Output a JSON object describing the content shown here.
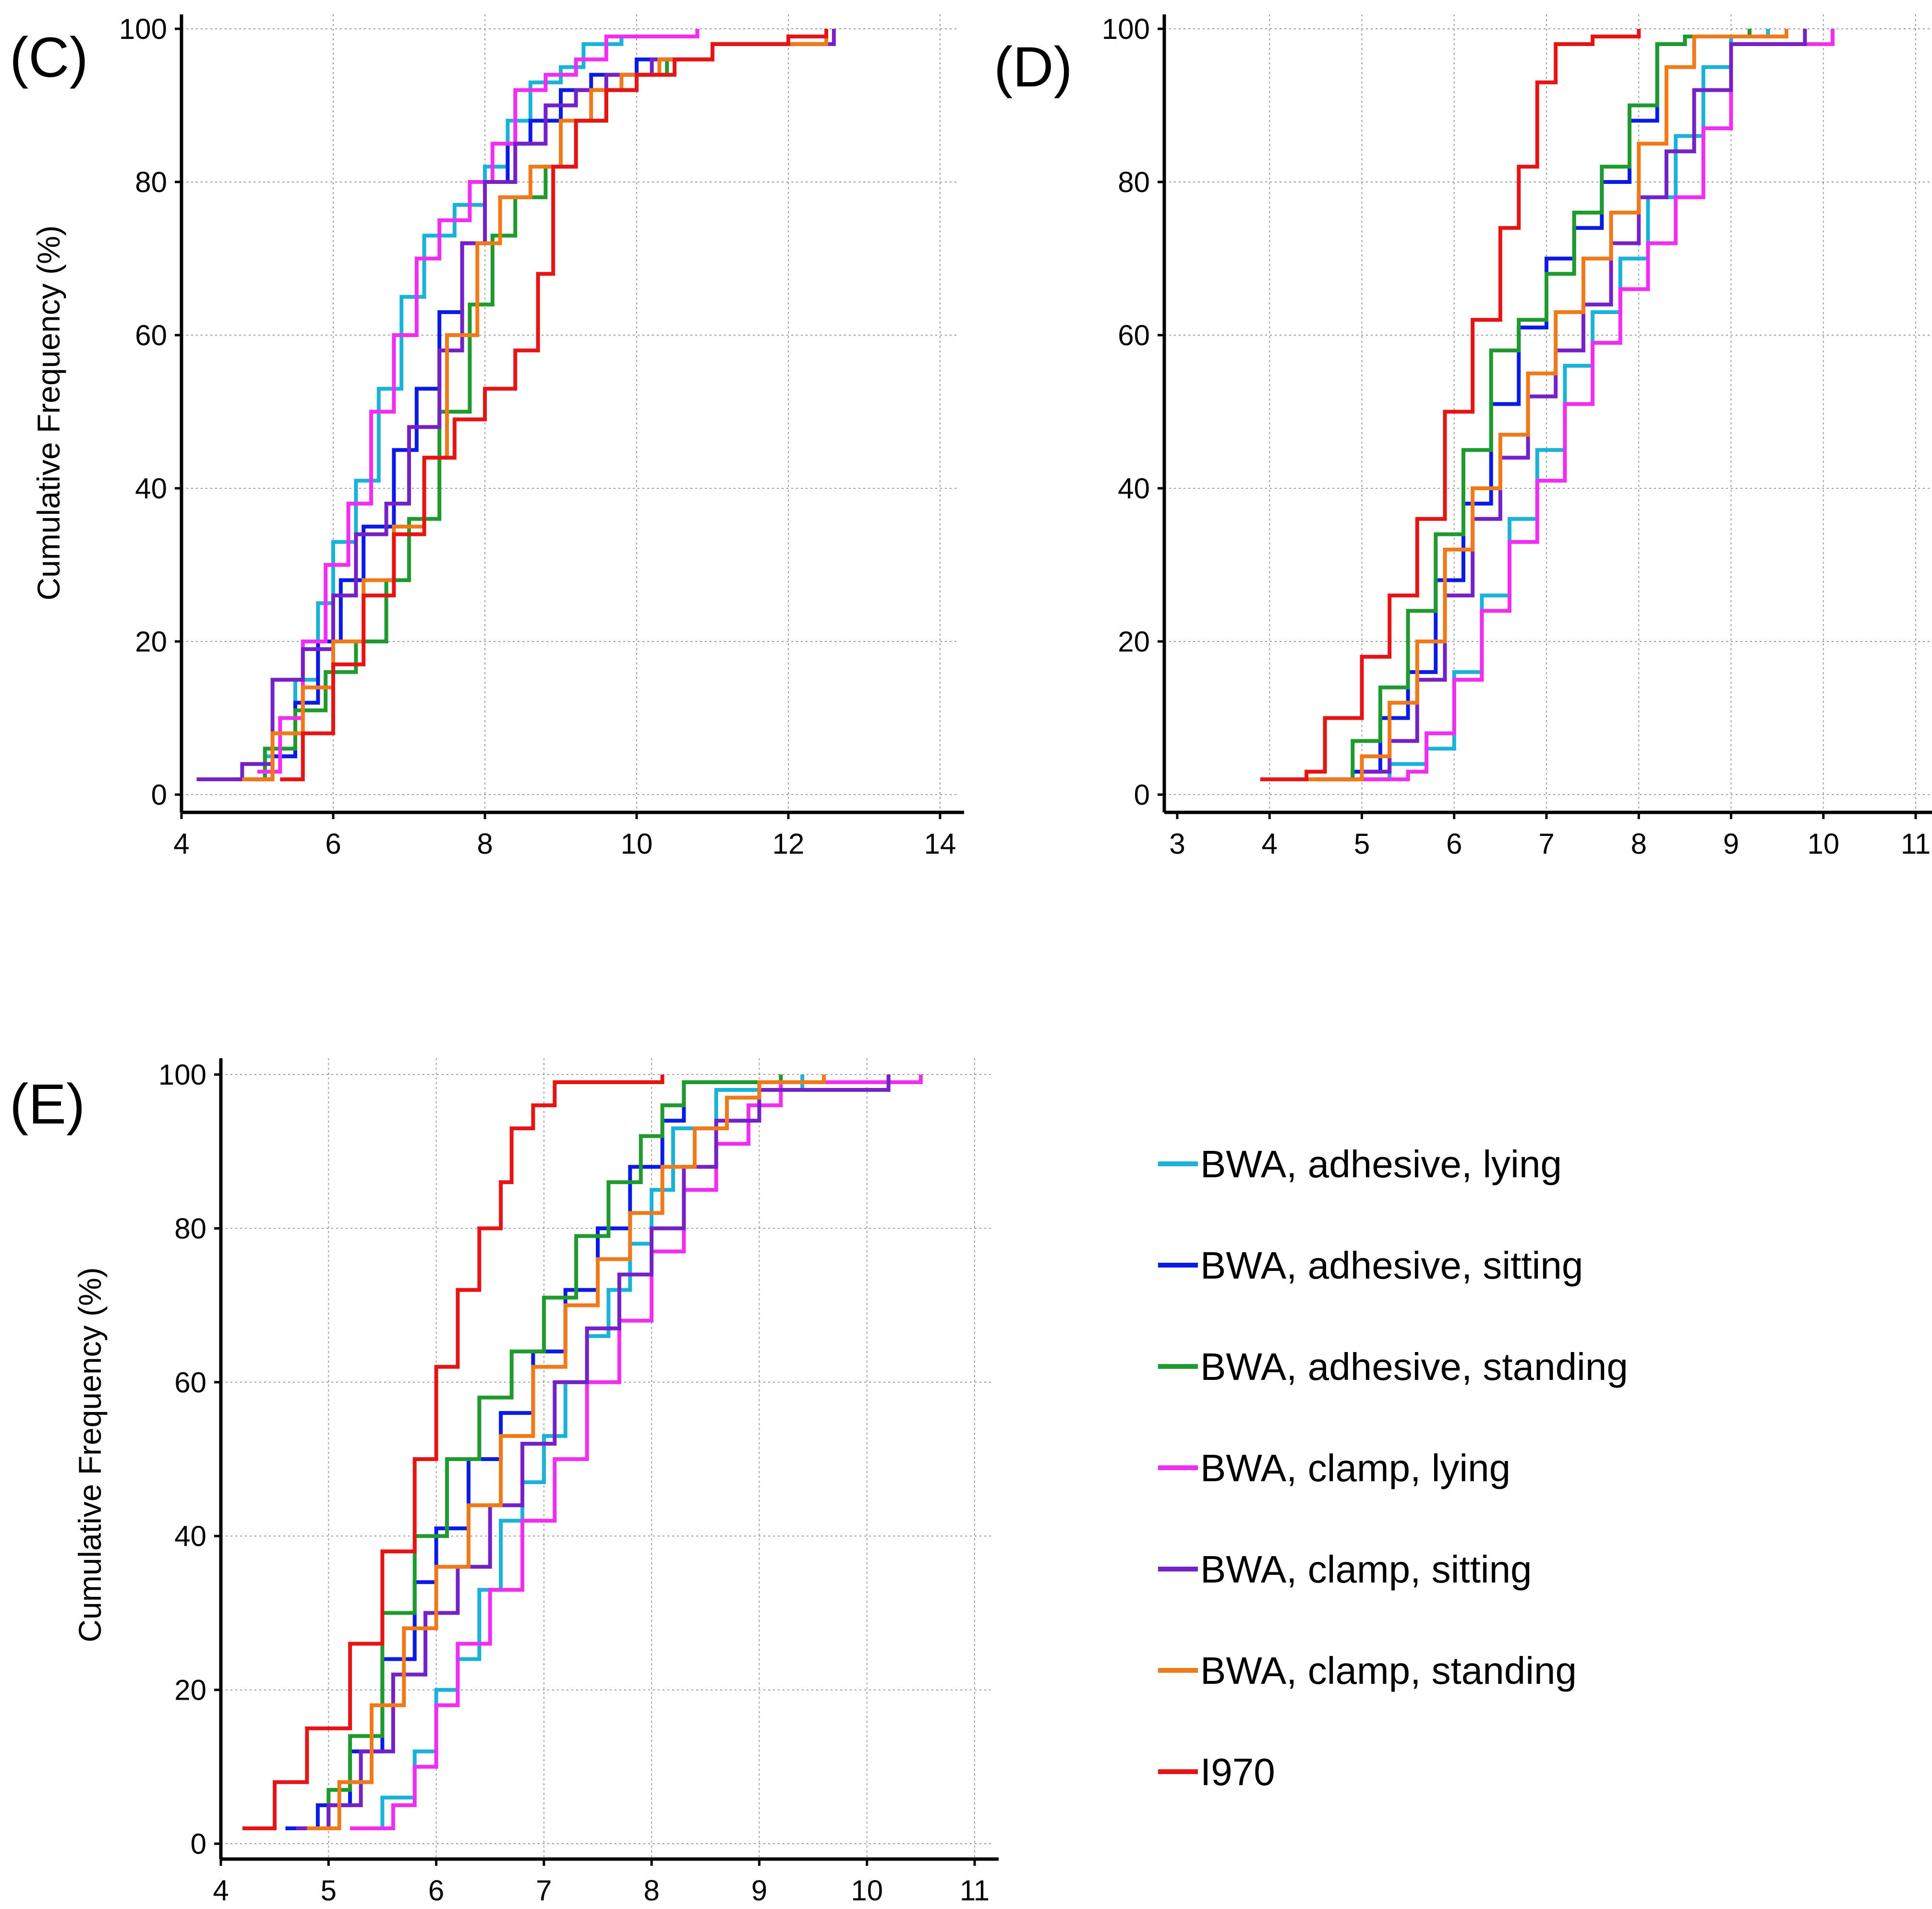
{
  "chart_data": [
    {
      "type": "line",
      "panel": "(C)",
      "ylabel": "Cumulative Frequency (%)",
      "xlabel": "",
      "xlim": [
        4,
        14
      ],
      "ylim": [
        0,
        100
      ],
      "xticks": [
        4,
        6,
        8,
        10,
        12,
        14
      ],
      "yticks": [
        0,
        20,
        40,
        60,
        80,
        100
      ],
      "series": [
        {
          "name": "BWA, adhesive, lying",
          "x": [
            4.8,
            5.1,
            5.5,
            5.8,
            6.0,
            6.3,
            6.6,
            6.9,
            7.2,
            7.6,
            8.0,
            8.3,
            8.6,
            9.0,
            9.3,
            9.8,
            10.8
          ],
          "y": [
            2,
            5,
            15,
            25,
            33,
            41,
            53,
            65,
            73,
            77,
            82,
            88,
            93,
            95,
            98,
            99,
            100
          ]
        },
        {
          "name": "BWA, adhesive, sitting",
          "x": [
            4.9,
            5.2,
            5.5,
            5.8,
            6.1,
            6.4,
            6.8,
            7.1,
            7.4,
            7.7,
            8.0,
            8.3,
            8.6,
            9.0,
            9.4,
            10.0,
            11.0,
            12.5
          ],
          "y": [
            2,
            5,
            12,
            20,
            28,
            35,
            45,
            53,
            63,
            72,
            80,
            85,
            88,
            92,
            94,
            96,
            98,
            100
          ]
        },
        {
          "name": "BWA, adhesive, standing",
          "x": [
            4.7,
            5.1,
            5.5,
            5.9,
            6.3,
            6.7,
            7.0,
            7.4,
            7.8,
            8.1,
            8.4,
            8.8,
            9.2,
            9.6,
            10.0,
            10.4,
            11.0,
            12.5
          ],
          "y": [
            2,
            6,
            11,
            16,
            20,
            28,
            36,
            50,
            64,
            73,
            78,
            82,
            88,
            92,
            94,
            96,
            98,
            100
          ]
        },
        {
          "name": "BWA, clamp, lying",
          "x": [
            5.0,
            5.3,
            5.6,
            5.9,
            6.2,
            6.5,
            6.8,
            7.1,
            7.4,
            7.8,
            8.1,
            8.4,
            8.8,
            9.2,
            9.6,
            10.8
          ],
          "y": [
            3,
            10,
            20,
            30,
            38,
            50,
            60,
            70,
            75,
            80,
            85,
            92,
            94,
            96,
            99,
            100
          ]
        },
        {
          "name": "BWA, clamp, sitting",
          "x": [
            4.2,
            4.8,
            5.2,
            5.6,
            6.0,
            6.3,
            6.7,
            7.0,
            7.4,
            7.7,
            8.0,
            8.4,
            8.8,
            9.2,
            9.6,
            10.2,
            11.0,
            12.6
          ],
          "y": [
            2,
            4,
            15,
            19,
            26,
            34,
            38,
            48,
            58,
            72,
            80,
            85,
            90,
            92,
            94,
            96,
            98,
            100
          ]
        },
        {
          "name": "BWA, clamp, standing",
          "x": [
            4.8,
            5.2,
            5.6,
            6.0,
            6.4,
            6.8,
            7.2,
            7.5,
            7.9,
            8.2,
            8.6,
            9.0,
            9.4,
            9.8,
            10.3,
            11.0,
            12.5
          ],
          "y": [
            2,
            8,
            14,
            20,
            28,
            35,
            44,
            60,
            72,
            78,
            82,
            88,
            92,
            94,
            96,
            98,
            100
          ]
        },
        {
          "name": "I970",
          "x": [
            5.3,
            5.6,
            6.0,
            6.4,
            6.8,
            7.2,
            7.6,
            8.0,
            8.4,
            8.7,
            8.9,
            9.2,
            9.6,
            10.0,
            10.5,
            11.0,
            12.0,
            12.5
          ],
          "y": [
            2,
            8,
            17,
            26,
            34,
            44,
            49,
            53,
            58,
            68,
            82,
            88,
            92,
            94,
            96,
            98,
            99,
            100
          ]
        }
      ]
    },
    {
      "type": "line",
      "panel": "(D)",
      "ylabel": "",
      "xlabel": "",
      "xlim": [
        3,
        11
      ],
      "ylim": [
        0,
        100
      ],
      "xticks": [
        3,
        4,
        5,
        6,
        7,
        8,
        9,
        10,
        11
      ],
      "yticks": [
        0,
        20,
        40,
        60,
        80,
        100
      ],
      "series": [
        {
          "name": "BWA, adhesive, lying",
          "x": [
            4.8,
            5.3,
            5.7,
            6.0,
            6.3,
            6.6,
            6.9,
            7.2,
            7.5,
            7.8,
            8.1,
            8.4,
            8.7,
            9.0,
            9.4
          ],
          "y": [
            2,
            4,
            6,
            16,
            26,
            36,
            45,
            56,
            63,
            70,
            78,
            86,
            95,
            99,
            100
          ]
        },
        {
          "name": "BWA, adhesive, sitting",
          "x": [
            4.5,
            4.9,
            5.2,
            5.5,
            5.8,
            6.1,
            6.4,
            6.7,
            7.0,
            7.3,
            7.6,
            7.9,
            8.2,
            8.5,
            9.2
          ],
          "y": [
            2,
            3,
            10,
            16,
            28,
            38,
            51,
            61,
            70,
            74,
            80,
            88,
            98,
            99,
            100
          ]
        },
        {
          "name": "BWA, adhesive, standing",
          "x": [
            4.5,
            4.9,
            5.2,
            5.5,
            5.8,
            6.1,
            6.4,
            6.7,
            7.0,
            7.3,
            7.6,
            7.9,
            8.2,
            8.5,
            9.2
          ],
          "y": [
            2,
            7,
            14,
            24,
            34,
            45,
            58,
            62,
            68,
            76,
            82,
            90,
            98,
            99,
            100
          ]
        },
        {
          "name": "BWA, clamp, lying",
          "x": [
            4.8,
            5.2,
            5.5,
            5.7,
            6.0,
            6.3,
            6.6,
            6.9,
            7.2,
            7.5,
            7.8,
            8.1,
            8.4,
            8.7,
            9.0,
            10.1
          ],
          "y": [
            2,
            2,
            3,
            8,
            15,
            24,
            33,
            41,
            51,
            59,
            66,
            72,
            78,
            87,
            98,
            100
          ]
        },
        {
          "name": "BWA, clamp, sitting",
          "x": [
            4.5,
            5.0,
            5.3,
            5.6,
            5.9,
            6.2,
            6.5,
            6.8,
            7.1,
            7.4,
            7.7,
            8.0,
            8.3,
            8.6,
            9.0,
            9.8
          ],
          "y": [
            2,
            3,
            7,
            15,
            26,
            36,
            44,
            52,
            58,
            64,
            72,
            78,
            84,
            92,
            98,
            100
          ]
        },
        {
          "name": "BWA, clamp, standing",
          "x": [
            4.4,
            5.0,
            5.3,
            5.6,
            5.9,
            6.2,
            6.5,
            6.8,
            7.1,
            7.4,
            7.7,
            8.0,
            8.3,
            8.6,
            9.6
          ],
          "y": [
            2,
            5,
            12,
            20,
            32,
            40,
            47,
            55,
            63,
            70,
            76,
            85,
            95,
            99,
            100
          ]
        },
        {
          "name": "I970",
          "x": [
            3.9,
            4.4,
            4.6,
            5.0,
            5.3,
            5.6,
            5.9,
            6.2,
            6.5,
            6.7,
            6.9,
            7.1,
            7.5,
            8.0
          ],
          "y": [
            2,
            3,
            10,
            18,
            26,
            36,
            50,
            62,
            74,
            82,
            93,
            98,
            99,
            100
          ]
        }
      ]
    },
    {
      "type": "line",
      "panel": "(E)",
      "ylabel": "Cumulative Frequency (%)",
      "xlabel": "",
      "xlim": [
        4,
        11
      ],
      "ylim": [
        0,
        100
      ],
      "xticks": [
        4,
        5,
        6,
        7,
        8,
        9,
        10,
        11
      ],
      "yticks": [
        0,
        20,
        40,
        60,
        80,
        100
      ],
      "series": [
        {
          "name": "BWA, adhesive, lying",
          "x": [
            5.2,
            5.5,
            5.8,
            6.0,
            6.2,
            6.4,
            6.6,
            6.8,
            7.0,
            7.2,
            7.4,
            7.6,
            7.8,
            8.0,
            8.2,
            8.6,
            9.4
          ],
          "y": [
            2,
            6,
            12,
            20,
            24,
            33,
            42,
            47,
            53,
            60,
            66,
            72,
            78,
            85,
            93,
            98,
            100
          ]
        },
        {
          "name": "BWA, adhesive, sitting",
          "x": [
            4.6,
            4.9,
            5.2,
            5.5,
            5.8,
            6.0,
            6.3,
            6.6,
            6.9,
            7.2,
            7.5,
            7.8,
            8.1,
            8.3,
            8.6,
            9.2,
            10.2
          ],
          "y": [
            2,
            5,
            12,
            24,
            34,
            41,
            50,
            56,
            64,
            72,
            80,
            88,
            94,
            99,
            99,
            99,
            100
          ]
        },
        {
          "name": "BWA, adhesive, standing",
          "x": [
            4.8,
            5.0,
            5.2,
            5.5,
            5.8,
            6.1,
            6.4,
            6.7,
            7.0,
            7.3,
            7.6,
            7.9,
            8.1,
            8.3,
            8.6,
            9.2
          ],
          "y": [
            2,
            7,
            14,
            30,
            40,
            50,
            58,
            64,
            71,
            79,
            86,
            92,
            96,
            99,
            99,
            100
          ]
        },
        {
          "name": "BWA, clamp, lying",
          "x": [
            5.2,
            5.6,
            5.8,
            6.0,
            6.2,
            6.5,
            6.8,
            7.1,
            7.4,
            7.7,
            8.0,
            8.3,
            8.6,
            8.9,
            9.2,
            10.5
          ],
          "y": [
            2,
            5,
            10,
            18,
            26,
            33,
            42,
            50,
            60,
            68,
            77,
            85,
            91,
            96,
            99,
            100
          ]
        },
        {
          "name": "BWA, clamp, sitting",
          "x": [
            4.7,
            5.0,
            5.3,
            5.6,
            5.9,
            6.2,
            6.5,
            6.8,
            7.1,
            7.4,
            7.7,
            8.0,
            8.3,
            8.6,
            9.0,
            10.2
          ],
          "y": [
            2,
            5,
            12,
            22,
            30,
            36,
            44,
            52,
            60,
            67,
            74,
            80,
            88,
            94,
            98,
            100
          ]
        },
        {
          "name": "BWA, clamp, standing",
          "x": [
            4.8,
            5.1,
            5.4,
            5.7,
            6.0,
            6.3,
            6.6,
            6.9,
            7.2,
            7.5,
            7.8,
            8.1,
            8.4,
            8.7,
            9.0,
            9.6
          ],
          "y": [
            2,
            8,
            18,
            28,
            36,
            44,
            53,
            62,
            70,
            76,
            82,
            88,
            93,
            97,
            99,
            100
          ]
        },
        {
          "name": "I970",
          "x": [
            4.2,
            4.5,
            4.8,
            5.2,
            5.5,
            5.8,
            6.0,
            6.2,
            6.4,
            6.6,
            6.7,
            6.9,
            7.1,
            7.5,
            8.1
          ],
          "y": [
            2,
            8,
            15,
            26,
            38,
            50,
            62,
            72,
            80,
            86,
            93,
            96,
            99,
            99,
            100
          ]
        }
      ]
    }
  ],
  "legend": {
    "items": [
      {
        "label": "BWA,  adhesive,  lying",
        "color": "#1ab2d8"
      },
      {
        "label": "BWA,  adhesive,  sitting",
        "color": "#0a1be6"
      },
      {
        "label": "BWA,  adhesive,  standing",
        "color": "#1f9a2e"
      },
      {
        "label": "BWA,  clamp,  lying",
        "color": "#f02df0"
      },
      {
        "label": "BWA,  clamp,  sitting",
        "color": "#7422c8"
      },
      {
        "label": "BWA,  clamp,  standing",
        "color": "#f07a1a"
      },
      {
        "label": "I970",
        "color": "#e61414"
      }
    ]
  },
  "colors": {
    "BWA, adhesive, lying": "#1ab2d8",
    "BWA, adhesive, sitting": "#0a1be6",
    "BWA, adhesive, standing": "#1f9a2e",
    "BWA, clamp, lying": "#f02df0",
    "BWA, clamp, sitting": "#7422c8",
    "BWA, clamp, standing": "#f07a1a",
    "I970": "#e61414"
  }
}
